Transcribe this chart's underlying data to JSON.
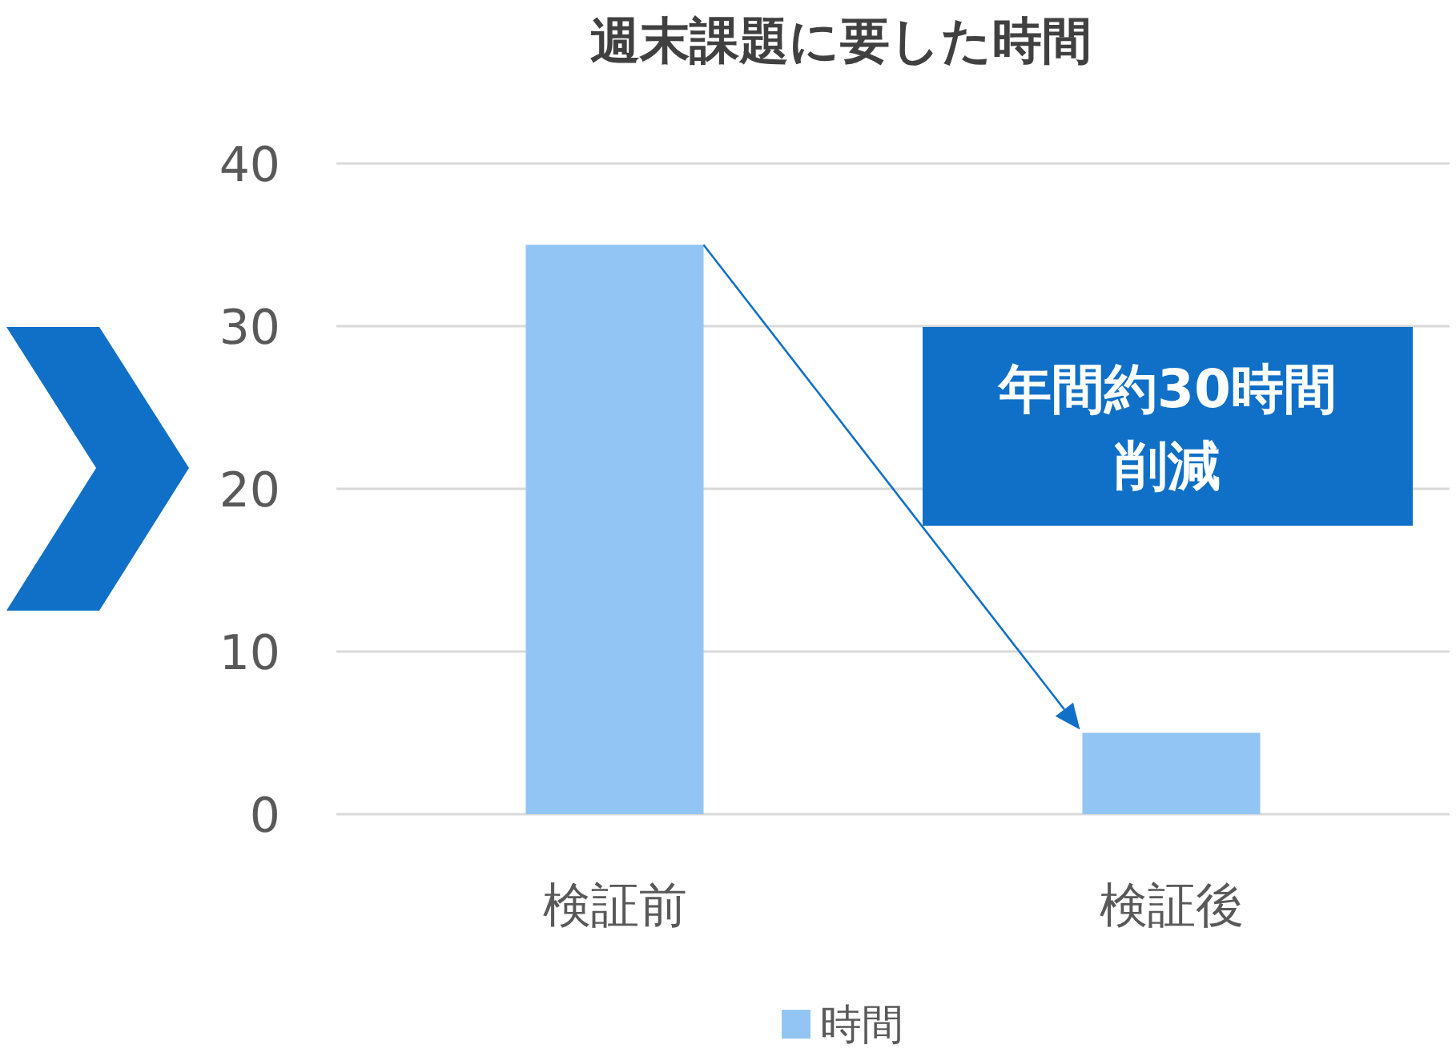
{
  "chart_data": {
    "type": "bar",
    "title": "週末課題に要した時間",
    "categories": [
      "検証前",
      "検証後"
    ],
    "series": [
      {
        "name": "時間",
        "color": "#93c5f4",
        "values": [
          35,
          5
        ]
      }
    ],
    "ylim": [
      0,
      40
    ],
    "yticks": [
      0,
      10,
      20,
      30,
      40
    ],
    "grid": "y",
    "legend": "bottom",
    "annotations": [
      "年間約30時間",
      "削減"
    ]
  }
}
